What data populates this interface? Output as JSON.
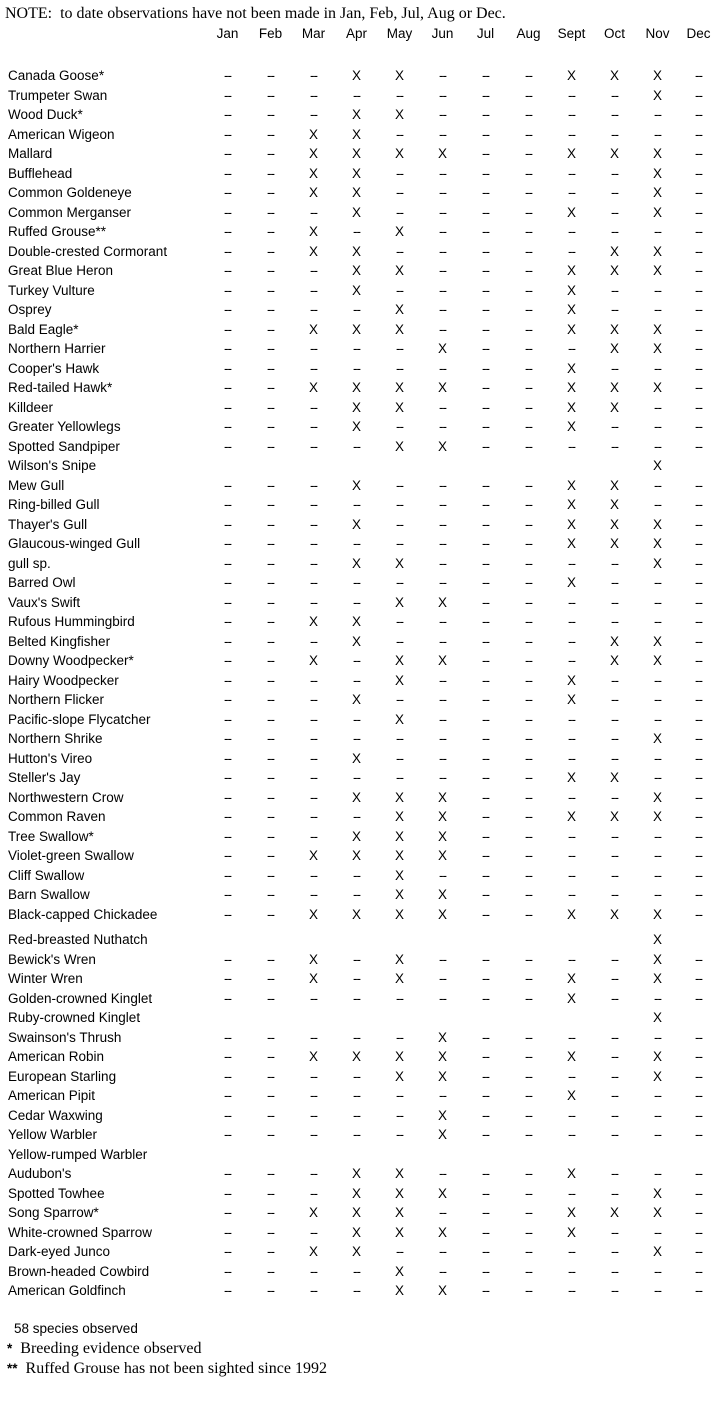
{
  "note": "NOTE:  to date observations have not been made in Jan, Feb, Jul, Aug or Dec.",
  "table": {
    "months": [
      "Jan",
      "Feb",
      "Mar",
      "Apr",
      "May",
      "Jun",
      "Jul",
      "Aug",
      "Sept",
      "Oct",
      "Nov",
      "Dec"
    ],
    "species": [
      {
        "name": "Canada Goose*",
        "cells": [
          "--",
          "--",
          "--",
          "X",
          "X",
          "--",
          "--",
          "--",
          "X",
          "X",
          "X",
          "--"
        ]
      },
      {
        "name": "Trumpeter Swan",
        "cells": [
          "--",
          "--",
          "--",
          "--",
          "--",
          "--",
          "--",
          "--",
          "--",
          "--",
          "X",
          "--"
        ]
      },
      {
        "name": "Wood Duck*",
        "cells": [
          "--",
          "--",
          "--",
          "X",
          "X",
          "--",
          "--",
          "--",
          "--",
          "--",
          "--",
          "--"
        ]
      },
      {
        "name": "American Wigeon",
        "cells": [
          "--",
          "--",
          "X",
          "X",
          "--",
          "--",
          "--",
          "--",
          "--",
          "--",
          "--",
          "--"
        ]
      },
      {
        "name": "Mallard",
        "cells": [
          "--",
          "--",
          "X",
          "X",
          "X",
          "X",
          "--",
          "--",
          "X",
          "X",
          "X",
          "--"
        ]
      },
      {
        "name": "Bufflehead",
        "cells": [
          "--",
          "--",
          "X",
          "X",
          "--",
          "--",
          "--",
          "--",
          "--",
          "--",
          "X",
          "--"
        ]
      },
      {
        "name": "Common Goldeneye",
        "cells": [
          "--",
          "--",
          "X",
          "X",
          "--",
          "--",
          "--",
          "--",
          "--",
          "--",
          "X",
          "--"
        ]
      },
      {
        "name": "Common Merganser",
        "cells": [
          "--",
          "--",
          "--",
          "X",
          "--",
          "--",
          "--",
          "--",
          "X",
          "--",
          "X",
          "--"
        ]
      },
      {
        "name": "Ruffed Grouse**",
        "cells": [
          "--",
          "--",
          "X",
          "--",
          "X",
          "--",
          "--",
          "--",
          "--",
          "--",
          "--",
          "--"
        ]
      },
      {
        "name": "Double-crested Cormorant",
        "cells": [
          "--",
          "--",
          "X",
          "X",
          "--",
          "--",
          "--",
          "--",
          "--",
          "X",
          "X",
          "--"
        ]
      },
      {
        "name": "Great Blue Heron",
        "cells": [
          "--",
          "--",
          "--",
          "X",
          "X",
          "--",
          "--",
          "--",
          "X",
          "X",
          "X",
          "--"
        ]
      },
      {
        "name": "Turkey Vulture",
        "cells": [
          "--",
          "--",
          "--",
          "X",
          "--",
          "--",
          "--",
          "--",
          "X",
          "--",
          "--",
          "--"
        ]
      },
      {
        "name": "Osprey",
        "cells": [
          "--",
          "--",
          "--",
          "--",
          "X",
          "--",
          "--",
          "--",
          "X",
          "--",
          "--",
          "--"
        ]
      },
      {
        "name": "Bald Eagle*",
        "cells": [
          "--",
          "--",
          "X",
          "X",
          "X",
          "--",
          "--",
          "--",
          "X",
          "X",
          "X",
          "--"
        ]
      },
      {
        "name": "Northern Harrier",
        "cells": [
          "--",
          "--",
          "--",
          "--",
          "--",
          "X",
          "--",
          "--",
          "--",
          "X",
          "X",
          "--"
        ]
      },
      {
        "name": "Cooper's Hawk",
        "cells": [
          "--",
          "--",
          "--",
          "--",
          "--",
          "--",
          "--",
          "--",
          "X",
          "--",
          "--",
          "--"
        ]
      },
      {
        "name": "Red-tailed Hawk*",
        "cells": [
          "--",
          "--",
          "X",
          "X",
          "X",
          "X",
          "--",
          "--",
          "X",
          "X",
          "X",
          "--"
        ]
      },
      {
        "name": "Killdeer",
        "cells": [
          "--",
          "--",
          "--",
          "X",
          "X",
          "--",
          "--",
          "--",
          "X",
          "X",
          "--",
          "--"
        ]
      },
      {
        "name": "Greater Yellowlegs",
        "cells": [
          "--",
          "--",
          "--",
          "X",
          "--",
          "--",
          "--",
          "--",
          "X",
          "--",
          "--",
          "--"
        ]
      },
      {
        "name": "Spotted Sandpiper",
        "cells": [
          "--",
          "--",
          "--",
          "--",
          "X",
          "X",
          "--",
          "--",
          "--",
          "--",
          "--",
          "--"
        ]
      },
      {
        "name": "Wilson's Snipe",
        "cells": [
          "",
          "",
          "",
          "",
          "",
          "",
          "",
          "",
          "",
          "",
          "X",
          ""
        ]
      },
      {
        "name": "Mew Gull",
        "cells": [
          "--",
          "--",
          "--",
          "X",
          "--",
          "--",
          "--",
          "--",
          "X",
          "X",
          "--",
          "--"
        ]
      },
      {
        "name": "Ring-billed Gull",
        "cells": [
          "--",
          "--",
          "--",
          "--",
          "--",
          "--",
          "--",
          "--",
          "X",
          "X",
          "--",
          "--"
        ]
      },
      {
        "name": "Thayer's Gull",
        "cells": [
          "--",
          "--",
          "--",
          "X",
          "--",
          "--",
          "--",
          "--",
          "X",
          "X",
          "X",
          "--"
        ]
      },
      {
        "name": "Glaucous-winged Gull",
        "cells": [
          "--",
          "--",
          "--",
          "--",
          "--",
          "--",
          "--",
          "--",
          "X",
          "X",
          "X",
          "--"
        ]
      },
      {
        "name": "gull sp.",
        "cells": [
          "--",
          "--",
          "--",
          "X",
          "X",
          "--",
          "--",
          "--",
          "--",
          "--",
          "X",
          "--"
        ]
      },
      {
        "name": "Barred Owl",
        "cells": [
          "--",
          "--",
          "--",
          "--",
          "--",
          "--",
          "--",
          "--",
          "X",
          "--",
          "--",
          "--"
        ]
      },
      {
        "name": "Vaux's Swift",
        "cells": [
          "--",
          "--",
          "--",
          "--",
          "X",
          "X",
          "--",
          "--",
          "--",
          "--",
          "--",
          "--"
        ]
      },
      {
        "name": "Rufous Hummingbird",
        "cells": [
          "--",
          "--",
          "X",
          "X",
          "--",
          "--",
          "--",
          "--",
          "--",
          "--",
          "--",
          "--"
        ]
      },
      {
        "name": "Belted Kingfisher",
        "cells": [
          "--",
          "--",
          "--",
          "X",
          "--",
          "--",
          "--",
          "--",
          "--",
          "X",
          "X",
          "--"
        ]
      },
      {
        "name": "Downy Woodpecker*",
        "cells": [
          "--",
          "--",
          "X",
          "--",
          "X",
          "X",
          "--",
          "--",
          "--",
          "X",
          "X",
          "--"
        ]
      },
      {
        "name": "Hairy Woodpecker",
        "cells": [
          "--",
          "--",
          "--",
          "--",
          "X",
          "--",
          "--",
          "--",
          "X",
          "--",
          "--",
          "--"
        ]
      },
      {
        "name": "Northern Flicker",
        "cells": [
          "--",
          "--",
          "--",
          "X",
          "--",
          "--",
          "--",
          "--",
          "X",
          "--",
          "--",
          "--"
        ]
      },
      {
        "name": "Pacific-slope Flycatcher",
        "cells": [
          "--",
          "--",
          "--",
          "--",
          "X",
          "--",
          "--",
          "--",
          "--",
          "--",
          "--",
          "--"
        ]
      },
      {
        "name": "Northern Shrike",
        "cells": [
          "--",
          "--",
          "--",
          "--",
          "--",
          "--",
          "--",
          "--",
          "--",
          "--",
          "X",
          "--"
        ]
      },
      {
        "name": "Hutton's Vireo",
        "cells": [
          "--",
          "--",
          "--",
          "X",
          "--",
          "--",
          "--",
          "--",
          "--",
          "--",
          "--",
          "--"
        ]
      },
      {
        "name": "Steller's Jay",
        "cells": [
          "--",
          "--",
          "--",
          "--",
          "--",
          "--",
          "--",
          "--",
          "X",
          "X",
          "--",
          "--"
        ]
      },
      {
        "name": "Northwestern Crow",
        "cells": [
          "--",
          "--",
          "--",
          "X",
          "X",
          "X",
          "--",
          "--",
          "--",
          "--",
          "X",
          "--"
        ]
      },
      {
        "name": "Common Raven",
        "cells": [
          "--",
          "--",
          "--",
          "--",
          "X",
          "X",
          "--",
          "--",
          "X",
          "X",
          "X",
          "--"
        ]
      },
      {
        "name": "Tree Swallow*",
        "cells": [
          "--",
          "--",
          "--",
          "X",
          "X",
          "X",
          "--",
          "--",
          "--",
          "--",
          "--",
          "--"
        ]
      },
      {
        "name": "Violet-green Swallow",
        "cells": [
          "--",
          "--",
          "X",
          "X",
          "X",
          "X",
          "--",
          "--",
          "--",
          "--",
          "--",
          "--"
        ]
      },
      {
        "name": "Cliff Swallow",
        "cells": [
          "--",
          "--",
          "--",
          "--",
          "X",
          "--",
          "--",
          "--",
          "--",
          "--",
          "--",
          "--"
        ]
      },
      {
        "name": "Barn Swallow",
        "cells": [
          "--",
          "--",
          "--",
          "--",
          "X",
          "X",
          "--",
          "--",
          "--",
          "--",
          "--",
          "--"
        ]
      },
      {
        "name": "Black-capped Chickadee",
        "cells": [
          "--",
          "--",
          "X",
          "X",
          "X",
          "X",
          "--",
          "--",
          "X",
          "X",
          "X",
          "--"
        ]
      },
      {
        "name": "Red-breasted Nuthatch",
        "cells": [
          "",
          "",
          "",
          "",
          "",
          "",
          "",
          "",
          "",
          "",
          "X",
          ""
        ],
        "gap_before": true
      },
      {
        "name": "Bewick's Wren",
        "cells": [
          "--",
          "--",
          "X",
          "--",
          "X",
          "--",
          "--",
          "--",
          "--",
          "--",
          "X",
          "--"
        ]
      },
      {
        "name": "Winter Wren",
        "cells": [
          "--",
          "--",
          "X",
          "--",
          "X",
          "--",
          "--",
          "--",
          "X",
          "--",
          "X",
          "--"
        ]
      },
      {
        "name": "Golden-crowned Kinglet",
        "cells": [
          "--",
          "--",
          "--",
          "--",
          "--",
          "--",
          "--",
          "--",
          "X",
          "--",
          "--",
          "--"
        ]
      },
      {
        "name": "Ruby-crowned Kinglet",
        "cells": [
          "",
          "",
          "",
          "",
          "",
          "",
          "",
          "",
          "",
          "",
          "X",
          ""
        ]
      },
      {
        "name": "Swainson's Thrush",
        "cells": [
          "--",
          "--",
          "--",
          "--",
          "--",
          "X",
          "--",
          "--",
          "--",
          "--",
          "--",
          "--"
        ]
      },
      {
        "name": "American Robin",
        "cells": [
          "--",
          "--",
          "X",
          "X",
          "X",
          "X",
          "--",
          "--",
          "X",
          "--",
          "X",
          "--"
        ]
      },
      {
        "name": "European Starling",
        "cells": [
          "--",
          "--",
          "--",
          "--",
          "X",
          "X",
          "--",
          "--",
          "--",
          "--",
          "X",
          "--"
        ]
      },
      {
        "name": "American Pipit",
        "cells": [
          "--",
          "--",
          "--",
          "--",
          "--",
          "--",
          "--",
          "--",
          "X",
          "--",
          "--",
          "--"
        ]
      },
      {
        "name": "Cedar Waxwing",
        "cells": [
          "--",
          "--",
          "--",
          "--",
          "--",
          "X",
          "--",
          "--",
          "--",
          "--",
          "--",
          "--"
        ]
      },
      {
        "name": "Yellow Warbler",
        "cells": [
          "--",
          "--",
          "--",
          "--",
          "--",
          "X",
          "--",
          "--",
          "--",
          "--",
          "--",
          "--"
        ]
      },
      {
        "name": "Yellow-rumped Warbler",
        "cells": [
          "",
          "",
          "",
          "",
          "",
          "",
          "",
          "",
          "",
          "",
          "",
          ""
        ]
      },
      {
        "name": "Audubon's",
        "cells": [
          "--",
          "--",
          "--",
          "X",
          "X",
          "--",
          "--",
          "--",
          "X",
          "--",
          "--",
          "--"
        ]
      },
      {
        "name": "Spotted Towhee",
        "cells": [
          "--",
          "--",
          "--",
          "X",
          "X",
          "X",
          "--",
          "--",
          "--",
          "--",
          "X",
          "--"
        ]
      },
      {
        "name": "Song Sparrow*",
        "cells": [
          "--",
          "--",
          "X",
          "X",
          "X",
          "--",
          "--",
          "--",
          "X",
          "X",
          "X",
          "--"
        ]
      },
      {
        "name": "White-crowned Sparrow",
        "cells": [
          "--",
          "--",
          "--",
          "X",
          "X",
          "X",
          "--",
          "--",
          "X",
          "--",
          "--",
          "--"
        ]
      },
      {
        "name": "Dark-eyed Junco",
        "cells": [
          "--",
          "--",
          "X",
          "X",
          "--",
          "--",
          "--",
          "--",
          "--",
          "--",
          "X",
          "--"
        ]
      },
      {
        "name": "Brown-headed Cowbird",
        "cells": [
          "--",
          "--",
          "--",
          "--",
          "X",
          "--",
          "--",
          "--",
          "--",
          "--",
          "--",
          "--"
        ]
      },
      {
        "name": "American Goldfinch",
        "cells": [
          "--",
          "--",
          "--",
          "--",
          "X",
          "X",
          "--",
          "--",
          "--",
          "--",
          "--",
          "--"
        ]
      }
    ]
  },
  "footer": {
    "count_line": "58 species observed",
    "legend1_marker": "*",
    "legend1_text": "Breeding evidence observed",
    "legend2_marker": "**",
    "legend2_text": "Ruffed Grouse has not been sighted since 1992"
  }
}
